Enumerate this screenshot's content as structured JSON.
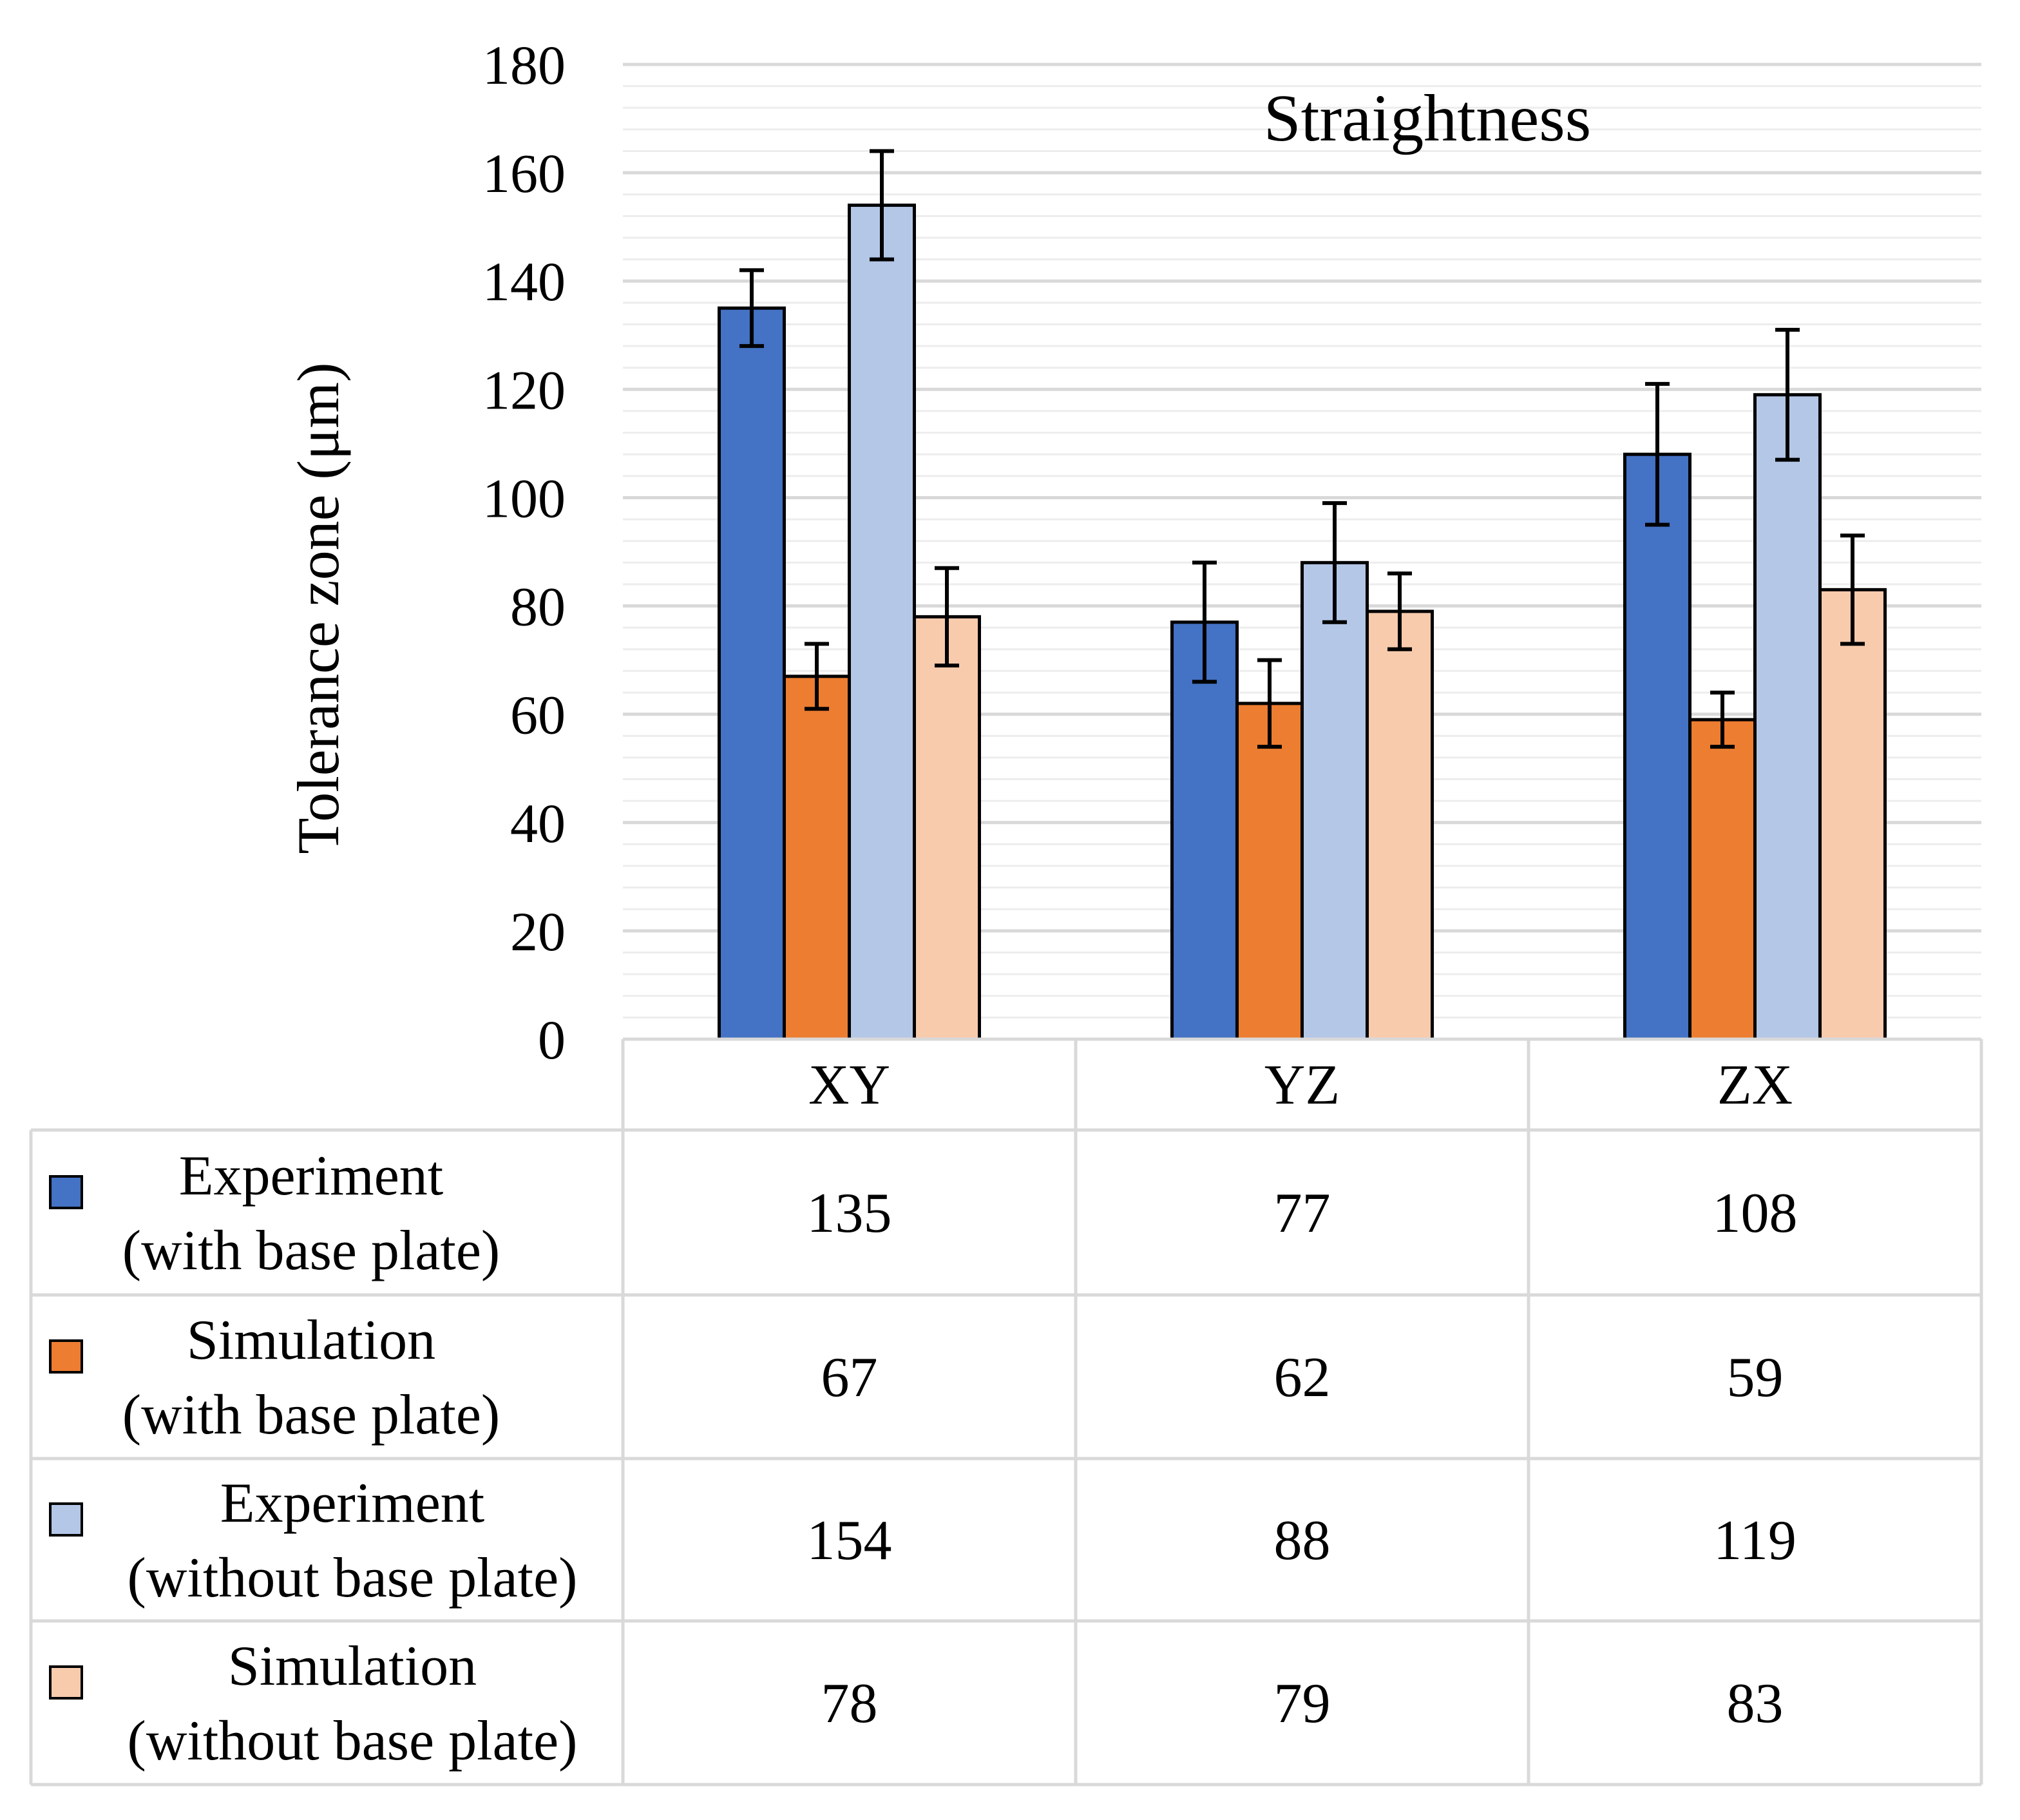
{
  "chart_data": {
    "type": "bar",
    "title": "Straightness",
    "xlabel": "",
    "ylabel": "Tolerance zone (μm)",
    "ylim": [
      0,
      180
    ],
    "y_major_step": 20,
    "y_minor_step": 4,
    "yticks": [
      "0",
      "20",
      "40",
      "60",
      "80",
      "100",
      "120",
      "140",
      "160",
      "180"
    ],
    "categories": [
      "XY",
      "YZ",
      "ZX"
    ],
    "legend_placement": "data-table-below",
    "series": [
      {
        "name_lines": [
          "Experiment",
          "(with base plate)"
        ],
        "color": "#4472C4",
        "values": [
          135,
          77,
          108
        ],
        "value_labels": [
          "135",
          "77",
          "108"
        ],
        "error": [
          7,
          11,
          13
        ]
      },
      {
        "name_lines": [
          "Simulation",
          "(with base plate)"
        ],
        "color": "#ED7D31",
        "values": [
          67,
          62,
          59
        ],
        "value_labels": [
          "67",
          "62",
          "59"
        ],
        "error": [
          6,
          8,
          5
        ]
      },
      {
        "name_lines": [
          "Experiment",
          "(without base plate)"
        ],
        "color": "#B4C7E7",
        "values": [
          154,
          88,
          119
        ],
        "value_labels": [
          "154",
          "88",
          "119"
        ],
        "error": [
          10,
          11,
          12
        ]
      },
      {
        "name_lines": [
          "Simulation",
          "(without base plate)"
        ],
        "color": "#F8CBAD",
        "values": [
          78,
          79,
          83
        ],
        "value_labels": [
          "78",
          "79",
          "83"
        ],
        "error": [
          9,
          7,
          10
        ]
      }
    ],
    "colors": {
      "gridline": "#d9d9d9",
      "minor_gridline": "#ededed",
      "bar_outline": "#000000",
      "table_border": "#d9d9d9"
    }
  }
}
